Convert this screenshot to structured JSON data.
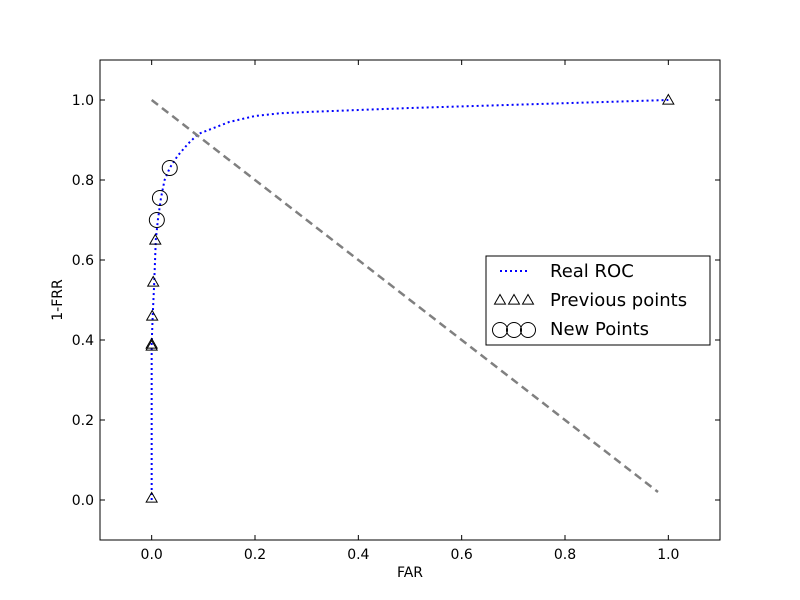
{
  "chart_data": {
    "type": "line",
    "title": "",
    "xlabel": "FAR",
    "ylabel": "1-FRR",
    "xlim": [
      -0.1,
      1.1
    ],
    "ylim": [
      -0.1,
      1.1
    ],
    "xticks": [
      "0.0",
      "0.2",
      "0.4",
      "0.6",
      "0.8",
      "1.0"
    ],
    "yticks": [
      "0.0",
      "0.2",
      "0.4",
      "0.6",
      "0.8",
      "1.0"
    ],
    "grid": false,
    "legend_position": "center-right",
    "series": [
      {
        "name": "Real ROC",
        "kind": "line",
        "style": "dotted",
        "color": "#0000ff",
        "x": [
          0.0,
          0.0,
          0.0,
          0.002,
          0.005,
          0.008,
          0.012,
          0.018,
          0.025,
          0.035,
          0.05,
          0.07,
          0.09,
          0.12,
          0.15,
          0.2,
          0.25,
          0.3,
          0.4,
          0.5,
          0.6,
          0.7,
          0.8,
          0.9,
          1.0
        ],
        "y": [
          0.0,
          0.2,
          0.39,
          0.46,
          0.545,
          0.65,
          0.7,
          0.755,
          0.8,
          0.83,
          0.86,
          0.89,
          0.915,
          0.93,
          0.945,
          0.96,
          0.967,
          0.97,
          0.975,
          0.98,
          0.984,
          0.988,
          0.992,
          0.996,
          1.0
        ]
      },
      {
        "name": "Previous points",
        "kind": "scatter",
        "marker": "triangle",
        "color": "#000000",
        "x": [
          0.0,
          0.0,
          0.0,
          0.001,
          0.003,
          0.007,
          1.0
        ],
        "y": [
          0.005,
          0.385,
          0.39,
          0.46,
          0.545,
          0.65,
          1.0
        ]
      },
      {
        "name": "New Points",
        "kind": "scatter",
        "marker": "circle",
        "color": "#000000",
        "x": [
          0.01,
          0.016,
          0.035
        ],
        "y": [
          0.7,
          0.755,
          0.83
        ]
      },
      {
        "kind": "line",
        "style": "dashed",
        "color": "#808080",
        "x": [
          0.0,
          0.98
        ],
        "y": [
          1.0,
          0.02
        ]
      }
    ]
  }
}
